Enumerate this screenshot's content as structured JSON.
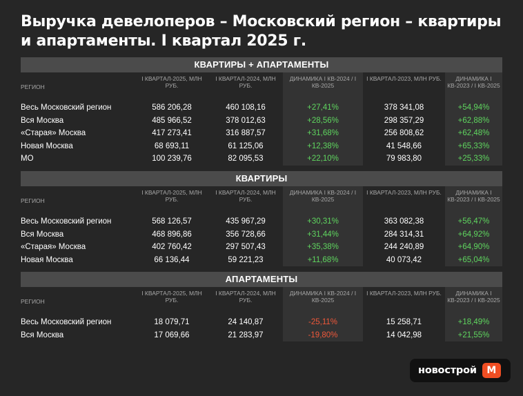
{
  "title": "Выручка девелоперов – Московский регион – квартиры и апартаменты. I квартал 2025 г.",
  "headers": {
    "region": "РЕГИОН",
    "q1_2025": "I КВАРТАЛ-2025, МЛН РУБ.",
    "q1_2024": "I КВАРТАЛ-2024, МЛН РУБ.",
    "dyn_2024": "ДИНАМИКА I КВ-2024 / I КВ-2025",
    "q1_2023": "I КВАРТАЛ-2023, МЛН РУБ.",
    "dyn_2023": "ДИНАМИКА I КВ-2023 / I КВ-2025"
  },
  "sections": [
    {
      "title": "КВАРТИРЫ + АПАРТАМЕНТЫ",
      "rows": [
        {
          "region": "Весь Московский регион",
          "q1_2025": "586 206,28",
          "q1_2024": "460 108,16",
          "dyn_2024": "+27,41%",
          "q1_2023": "378 341,08",
          "dyn_2023": "+54,94%"
        },
        {
          "region": "Вся Москва",
          "q1_2025": "485 966,52",
          "q1_2024": "378 012,63",
          "dyn_2024": "+28,56%",
          "q1_2023": "298 357,29",
          "dyn_2023": "+62,88%"
        },
        {
          "region": "«Старая» Москва",
          "q1_2025": "417 273,41",
          "q1_2024": "316 887,57",
          "dyn_2024": "+31,68%",
          "q1_2023": "256 808,62",
          "dyn_2023": "+62,48%"
        },
        {
          "region": "Новая Москва",
          "q1_2025": "68 693,11",
          "q1_2024": "61 125,06",
          "dyn_2024": "+12,38%",
          "q1_2023": "41 548,66",
          "dyn_2023": "+65,33%"
        },
        {
          "region": "МО",
          "q1_2025": "100 239,76",
          "q1_2024": "82 095,53",
          "dyn_2024": "+22,10%",
          "q1_2023": "79 983,80",
          "dyn_2023": "+25,33%"
        }
      ]
    },
    {
      "title": "КВАРТИРЫ",
      "rows": [
        {
          "region": "Весь Московский регион",
          "q1_2025": "568 126,57",
          "q1_2024": "435 967,29",
          "dyn_2024": "+30,31%",
          "q1_2023": "363 082,38",
          "dyn_2023": "+56,47%"
        },
        {
          "region": "Вся Москва",
          "q1_2025": "468 896,86",
          "q1_2024": "356 728,66",
          "dyn_2024": "+31,44%",
          "q1_2023": "284 314,31",
          "dyn_2023": "+64,92%"
        },
        {
          "region": "«Старая» Москва",
          "q1_2025": "402 760,42",
          "q1_2024": "297 507,43",
          "dyn_2024": "+35,38%",
          "q1_2023": "244 240,89",
          "dyn_2023": "+64,90%"
        },
        {
          "region": "Новая Москва",
          "q1_2025": "66 136,44",
          "q1_2024": "59 221,23",
          "dyn_2024": "+11,68%",
          "q1_2023": "40 073,42",
          "dyn_2023": "+65,04%"
        }
      ]
    },
    {
      "title": "АПАРТАМЕНТЫ",
      "rows": [
        {
          "region": "Весь Московский регион",
          "q1_2025": "18 079,71",
          "q1_2024": "24 140,87",
          "dyn_2024": "-25,11%",
          "q1_2023": "15 258,71",
          "dyn_2023": "+18,49%"
        },
        {
          "region": "Вся Москва",
          "q1_2025": "17 069,66",
          "q1_2024": "21 283,97",
          "dyn_2024": "-19,80%",
          "q1_2023": "14 042,98",
          "dyn_2023": "+21,55%"
        }
      ]
    }
  ],
  "logo": {
    "text": "новострой",
    "badge": "М"
  },
  "colors": {
    "background": "#262626",
    "positive": "#5fd65f",
    "negative": "#f0583a",
    "brand": "#f04e23"
  }
}
